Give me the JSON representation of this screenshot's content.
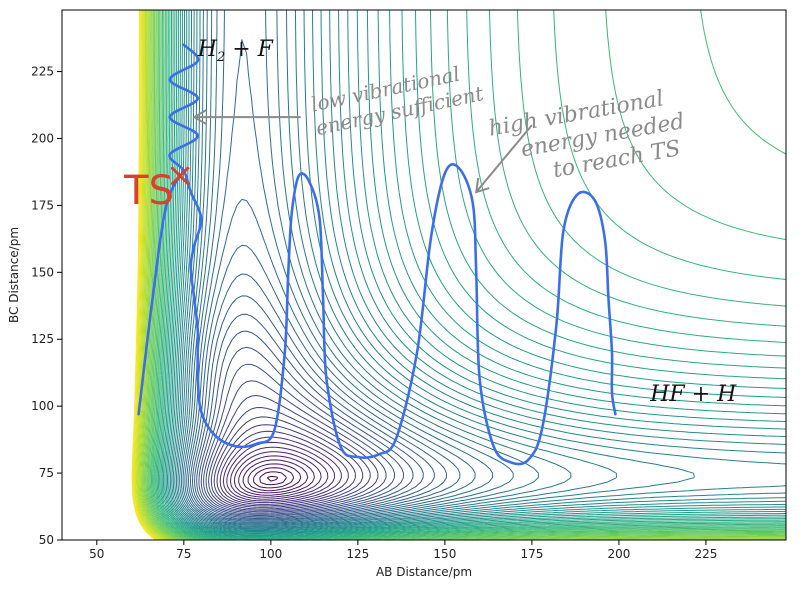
{
  "chart_data": {
    "type": "contour",
    "xlabel": "AB Distance/pm",
    "ylabel": "BC Distance/pm",
    "xlim": [
      40,
      248
    ],
    "ylim": [
      50,
      248
    ],
    "xticks": [
      50,
      75,
      100,
      125,
      150,
      175,
      200,
      225
    ],
    "yticks": [
      50,
      75,
      100,
      125,
      150,
      175,
      200,
      225
    ],
    "colormap": "viridis",
    "trajectory": {
      "color": "#3b6fe8",
      "points": [
        [
          75,
          235
        ],
        [
          79,
          229
        ],
        [
          71,
          222
        ],
        [
          79,
          215
        ],
        [
          71,
          208
        ],
        [
          79,
          201
        ],
        [
          71,
          194
        ],
        [
          75,
          188
        ],
        [
          77,
          180
        ],
        [
          80,
          170
        ],
        [
          78,
          160
        ],
        [
          77,
          152
        ],
        [
          78,
          140
        ],
        [
          79,
          128
        ],
        [
          79,
          112
        ],
        [
          80,
          98
        ],
        [
          84,
          89
        ],
        [
          90,
          85
        ],
        [
          96,
          86
        ],
        [
          101,
          91
        ],
        [
          104,
          120
        ],
        [
          105,
          150
        ],
        [
          106,
          172
        ],
        [
          108,
          186
        ],
        [
          111,
          184
        ],
        [
          114,
          170
        ],
        [
          115,
          140
        ],
        [
          116,
          110
        ],
        [
          120,
          85
        ],
        [
          125,
          81
        ],
        [
          131,
          82
        ],
        [
          136,
          88
        ],
        [
          142,
          120
        ],
        [
          146,
          163
        ],
        [
          150,
          187
        ],
        [
          154,
          189
        ],
        [
          158,
          176
        ],
        [
          159,
          150
        ],
        [
          160,
          110
        ],
        [
          164,
          85
        ],
        [
          169,
          79
        ],
        [
          174,
          80
        ],
        [
          178,
          92
        ],
        [
          182,
          130
        ],
        [
          184,
          165
        ],
        [
          188,
          179
        ],
        [
          193,
          177
        ],
        [
          196,
          162
        ],
        [
          197,
          140
        ],
        [
          198,
          120
        ],
        [
          198,
          105
        ],
        [
          199,
          97
        ]
      ],
      "lead_in": [
        [
          62,
          97
        ],
        [
          66,
          140
        ],
        [
          70,
          175
        ],
        [
          75,
          188
        ]
      ]
    },
    "annotations": [
      {
        "text_parts": [
          "H",
          "2",
          " + F"
        ],
        "x": 79,
        "y": 230
      },
      {
        "text": "TS",
        "x": 59,
        "y": 180,
        "color": "#d9412a"
      },
      {
        "text": "×",
        "x": 71,
        "y": 185,
        "color": "#d9412a"
      },
      {
        "text": "HF + H",
        "x": 209,
        "y": 102
      },
      {
        "lines": [
          "low vibrational",
          "energy sufficient"
        ],
        "x": 112,
        "y": 210,
        "color": "#8a8a8a"
      },
      {
        "lines": [
          "high vibrational",
          "energy needed",
          "to reach TS"
        ],
        "x": 163,
        "y": 201,
        "color": "#8a8a8a"
      }
    ]
  }
}
